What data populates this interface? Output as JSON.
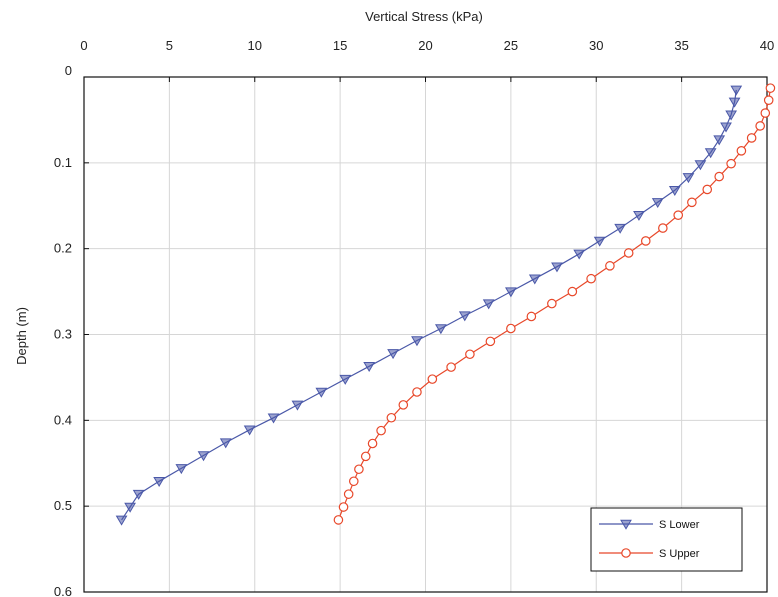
{
  "chart_data": {
    "type": "line",
    "title": "",
    "xlabel": "Vertical Stress (kPa)",
    "ylabel": "Depth (m)",
    "xlim": [
      0,
      40
    ],
    "ylim": [
      0,
      0.6
    ],
    "y_inverted": true,
    "x_axis_position": "top",
    "x_ticks": [
      0,
      5,
      10,
      15,
      20,
      25,
      30,
      35,
      40
    ],
    "y_ticks": [
      0,
      0.1,
      0.2,
      0.3,
      0.4,
      0.5,
      0.6
    ],
    "x_tick_labels": [
      "0",
      "5",
      "10",
      "15",
      "20",
      "25",
      "30",
      "35",
      "40"
    ],
    "y_tick_labels": [
      "0",
      "0.1",
      "0.2",
      "0.3",
      "0.4",
      "0.5",
      "0.6"
    ],
    "grid": true,
    "legend_position": "bottom-right",
    "series": [
      {
        "name": "S Lower",
        "color": "#4a58a8",
        "marker": "triangle-down",
        "points": [
          [
            38.2,
            0.015
          ],
          [
            38.1,
            0.029
          ],
          [
            37.9,
            0.044
          ],
          [
            37.6,
            0.058
          ],
          [
            37.2,
            0.073
          ],
          [
            36.7,
            0.088
          ],
          [
            36.1,
            0.102
          ],
          [
            35.4,
            0.117
          ],
          [
            34.6,
            0.132
          ],
          [
            33.6,
            0.146
          ],
          [
            32.5,
            0.161
          ],
          [
            31.4,
            0.176
          ],
          [
            30.2,
            0.191
          ],
          [
            29.0,
            0.206
          ],
          [
            27.7,
            0.221
          ],
          [
            26.4,
            0.235
          ],
          [
            25.0,
            0.25
          ],
          [
            23.7,
            0.264
          ],
          [
            22.3,
            0.278
          ],
          [
            20.9,
            0.293
          ],
          [
            19.5,
            0.307
          ],
          [
            18.1,
            0.322
          ],
          [
            16.7,
            0.337
          ],
          [
            15.3,
            0.352
          ],
          [
            13.9,
            0.367
          ],
          [
            12.5,
            0.382
          ],
          [
            11.1,
            0.397
          ],
          [
            9.7,
            0.411
          ],
          [
            8.3,
            0.426
          ],
          [
            7.0,
            0.441
          ],
          [
            5.7,
            0.456
          ],
          [
            4.4,
            0.471
          ],
          [
            3.2,
            0.486
          ],
          [
            2.7,
            0.501
          ],
          [
            2.2,
            0.516
          ]
        ]
      },
      {
        "name": "S Upper",
        "color": "#e8482a",
        "marker": "circle",
        "points": [
          [
            40.2,
            0.013
          ],
          [
            40.1,
            0.027
          ],
          [
            39.9,
            0.042
          ],
          [
            39.6,
            0.057
          ],
          [
            39.1,
            0.071
          ],
          [
            38.5,
            0.086
          ],
          [
            37.9,
            0.101
          ],
          [
            37.2,
            0.116
          ],
          [
            36.5,
            0.131
          ],
          [
            35.6,
            0.146
          ],
          [
            34.8,
            0.161
          ],
          [
            33.9,
            0.176
          ],
          [
            32.9,
            0.191
          ],
          [
            31.9,
            0.205
          ],
          [
            30.8,
            0.22
          ],
          [
            29.7,
            0.235
          ],
          [
            28.6,
            0.25
          ],
          [
            27.4,
            0.264
          ],
          [
            26.2,
            0.279
          ],
          [
            25.0,
            0.293
          ],
          [
            23.8,
            0.308
          ],
          [
            22.6,
            0.323
          ],
          [
            21.5,
            0.338
          ],
          [
            20.4,
            0.352
          ],
          [
            19.5,
            0.367
          ],
          [
            18.7,
            0.382
          ],
          [
            18.0,
            0.397
          ],
          [
            17.4,
            0.412
          ],
          [
            16.9,
            0.427
          ],
          [
            16.5,
            0.442
          ],
          [
            16.1,
            0.457
          ],
          [
            15.8,
            0.471
          ],
          [
            15.5,
            0.486
          ],
          [
            15.2,
            0.501
          ],
          [
            14.9,
            0.516
          ]
        ]
      }
    ]
  }
}
